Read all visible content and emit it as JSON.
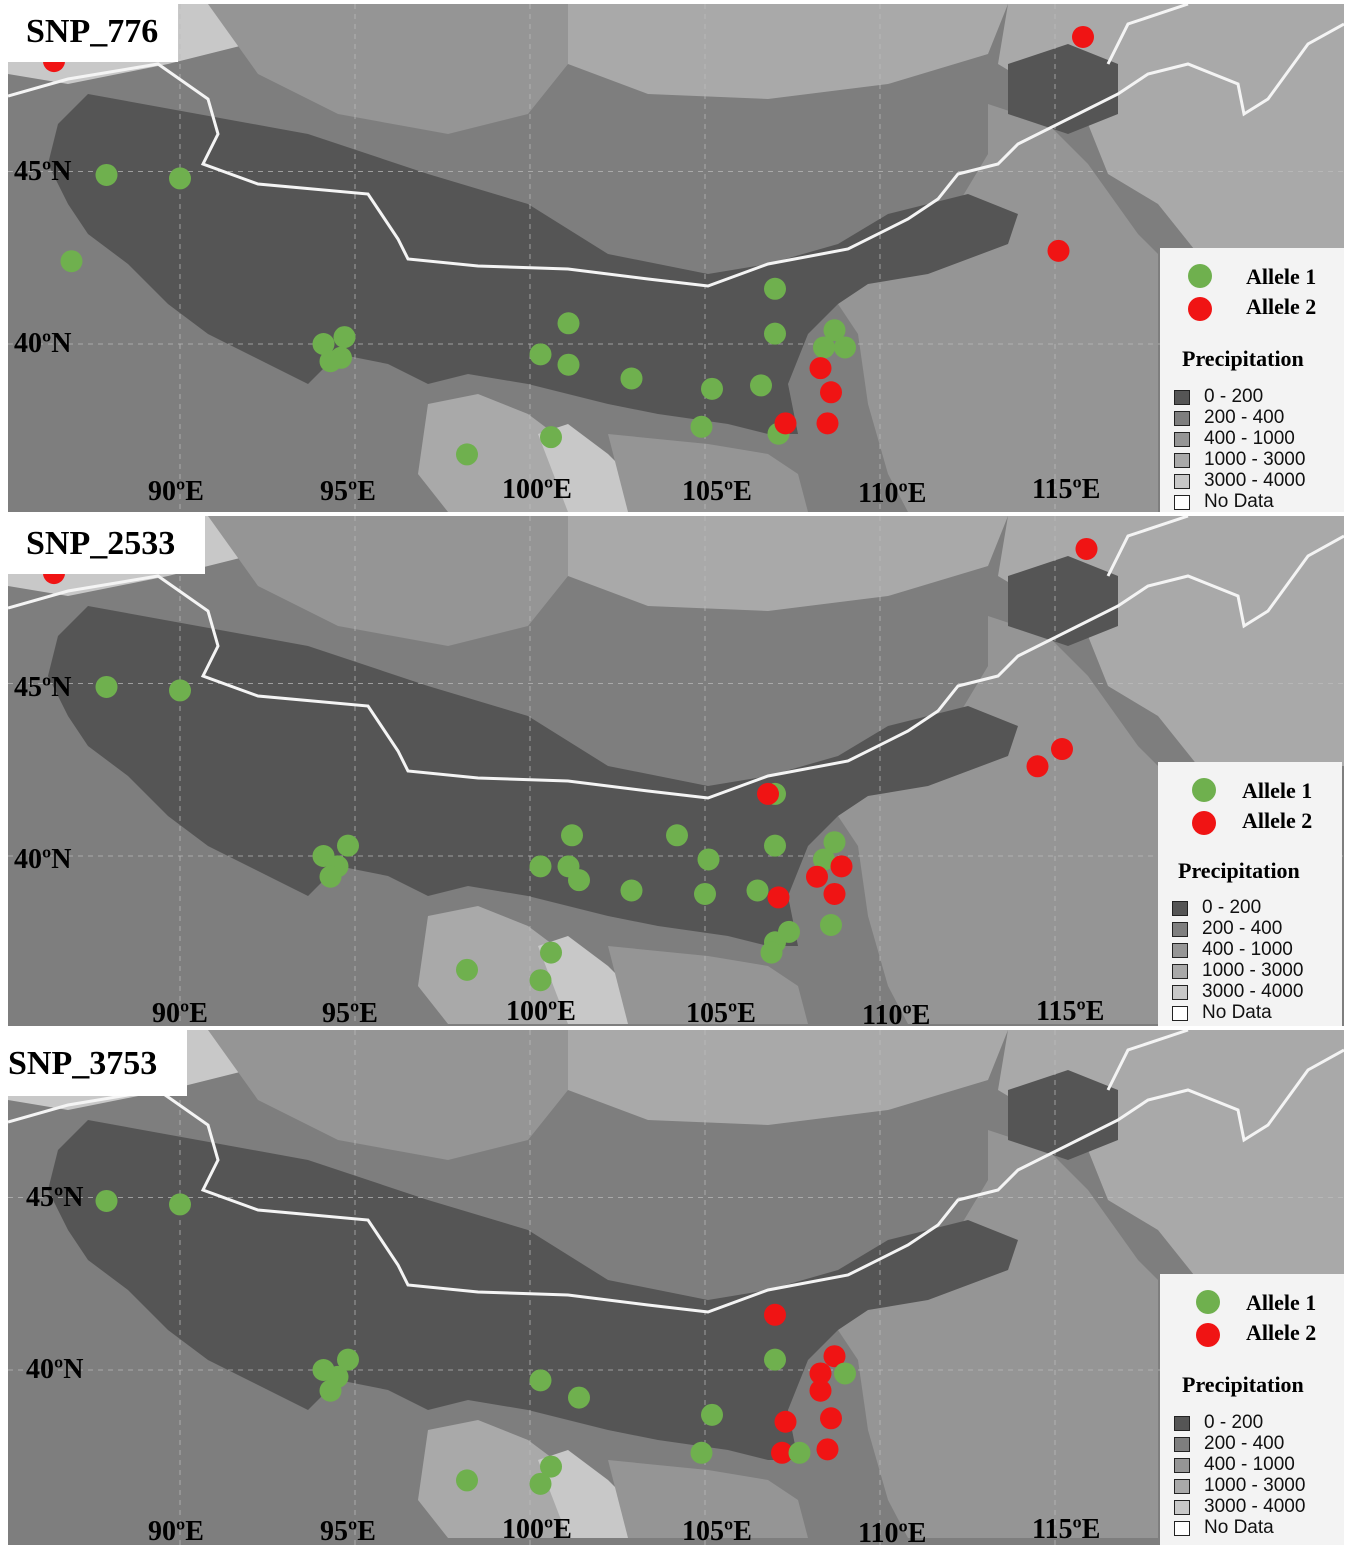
{
  "colors": {
    "allele_1": "#6fb04e",
    "allele_2": "#f01414",
    "precip_0_200": "#555555",
    "precip_200_400": "#7e7e7e",
    "precip_400_1000": "#959595",
    "precip_1000_3000": "#a9a9a9",
    "precip_3000_4000": "#c8c8c8",
    "no_data": "#ffffff"
  },
  "legend": {
    "allele_1": "Allele 1",
    "allele_2": "Allele 2",
    "precipitation_title": "Precipitation",
    "precipitation_classes": [
      "0 - 200",
      "200 - 400",
      "400 - 1000",
      "1000 - 3000",
      "3000 - 4000",
      "No Data"
    ]
  },
  "longitude_labels": [
    "90ºE",
    "95ºE",
    "100ºE",
    "105ºE",
    "110ºE",
    "115ºE"
  ],
  "latitude_labels": [
    "45ºN",
    "40ºN"
  ],
  "panels": [
    {
      "title": "SNP_776",
      "samples": [
        {
          "lon": 86.4,
          "lat": 48.2,
          "allele": 2
        },
        {
          "lon": 87.9,
          "lat": 44.9,
          "allele": 1
        },
        {
          "lon": 90.0,
          "lat": 44.8,
          "allele": 1
        },
        {
          "lon": 86.9,
          "lat": 42.4,
          "allele": 1
        },
        {
          "lon": 94.1,
          "lat": 40.0,
          "allele": 1
        },
        {
          "lon": 94.7,
          "lat": 40.2,
          "allele": 1
        },
        {
          "lon": 94.3,
          "lat": 39.5,
          "allele": 1
        },
        {
          "lon": 94.6,
          "lat": 39.6,
          "allele": 1
        },
        {
          "lon": 98.2,
          "lat": 36.8,
          "allele": 1
        },
        {
          "lon": 100.3,
          "lat": 39.7,
          "allele": 1
        },
        {
          "lon": 101.1,
          "lat": 40.6,
          "allele": 1
        },
        {
          "lon": 101.1,
          "lat": 39.4,
          "allele": 1
        },
        {
          "lon": 100.6,
          "lat": 37.3,
          "allele": 1
        },
        {
          "lon": 102.9,
          "lat": 39.0,
          "allele": 1
        },
        {
          "lon": 105.2,
          "lat": 38.7,
          "allele": 1
        },
        {
          "lon": 104.9,
          "lat": 37.6,
          "allele": 1
        },
        {
          "lon": 106.6,
          "lat": 38.8,
          "allele": 1
        },
        {
          "lon": 107.0,
          "lat": 41.6,
          "allele": 1
        },
        {
          "lon": 107.0,
          "lat": 40.3,
          "allele": 1
        },
        {
          "lon": 107.1,
          "lat": 37.4,
          "allele": 1
        },
        {
          "lon": 107.3,
          "lat": 37.7,
          "allele": 2
        },
        {
          "lon": 108.4,
          "lat": 39.9,
          "allele": 1
        },
        {
          "lon": 108.7,
          "lat": 40.4,
          "allele": 1
        },
        {
          "lon": 109.0,
          "lat": 39.9,
          "allele": 1
        },
        {
          "lon": 108.3,
          "lat": 39.3,
          "allele": 2
        },
        {
          "lon": 108.6,
          "lat": 38.6,
          "allele": 2
        },
        {
          "lon": 108.5,
          "lat": 37.7,
          "allele": 2
        },
        {
          "lon": 115.8,
          "lat": 48.9,
          "allele": 2
        },
        {
          "lon": 115.1,
          "lat": 42.7,
          "allele": 2
        }
      ]
    },
    {
      "title": "SNP_2533",
      "samples": [
        {
          "lon": 86.4,
          "lat": 48.2,
          "allele": 2
        },
        {
          "lon": 87.9,
          "lat": 44.9,
          "allele": 1
        },
        {
          "lon": 90.0,
          "lat": 44.8,
          "allele": 1
        },
        {
          "lon": 94.1,
          "lat": 40.0,
          "allele": 1
        },
        {
          "lon": 94.8,
          "lat": 40.3,
          "allele": 1
        },
        {
          "lon": 94.5,
          "lat": 39.7,
          "allele": 1
        },
        {
          "lon": 94.3,
          "lat": 39.4,
          "allele": 1
        },
        {
          "lon": 98.2,
          "lat": 36.7,
          "allele": 1
        },
        {
          "lon": 100.6,
          "lat": 37.2,
          "allele": 1
        },
        {
          "lon": 100.3,
          "lat": 36.4,
          "allele": 1
        },
        {
          "lon": 100.3,
          "lat": 39.7,
          "allele": 1
        },
        {
          "lon": 101.2,
          "lat": 40.6,
          "allele": 1
        },
        {
          "lon": 101.1,
          "lat": 39.7,
          "allele": 1
        },
        {
          "lon": 101.4,
          "lat": 39.3,
          "allele": 1
        },
        {
          "lon": 102.9,
          "lat": 39.0,
          "allele": 1
        },
        {
          "lon": 104.2,
          "lat": 40.6,
          "allele": 1
        },
        {
          "lon": 105.1,
          "lat": 39.9,
          "allele": 1
        },
        {
          "lon": 105.0,
          "lat": 38.9,
          "allele": 1
        },
        {
          "lon": 106.5,
          "lat": 39.0,
          "allele": 1
        },
        {
          "lon": 107.0,
          "lat": 41.8,
          "allele": 1
        },
        {
          "lon": 106.8,
          "lat": 41.8,
          "allele": 2
        },
        {
          "lon": 107.0,
          "lat": 40.3,
          "allele": 1
        },
        {
          "lon": 107.1,
          "lat": 38.8,
          "allele": 2
        },
        {
          "lon": 107.4,
          "lat": 37.8,
          "allele": 1
        },
        {
          "lon": 107.0,
          "lat": 37.5,
          "allele": 1
        },
        {
          "lon": 106.9,
          "lat": 37.2,
          "allele": 1
        },
        {
          "lon": 108.4,
          "lat": 39.9,
          "allele": 1
        },
        {
          "lon": 108.7,
          "lat": 40.4,
          "allele": 1
        },
        {
          "lon": 108.2,
          "lat": 39.4,
          "allele": 2
        },
        {
          "lon": 108.9,
          "lat": 39.7,
          "allele": 2
        },
        {
          "lon": 108.7,
          "lat": 38.9,
          "allele": 2
        },
        {
          "lon": 108.6,
          "lat": 38.0,
          "allele": 1
        },
        {
          "lon": 115.9,
          "lat": 48.9,
          "allele": 2
        },
        {
          "lon": 114.5,
          "lat": 42.6,
          "allele": 2
        },
        {
          "lon": 115.2,
          "lat": 43.1,
          "allele": 2
        }
      ]
    },
    {
      "title": "SNP_3753",
      "samples": [
        {
          "lon": 87.9,
          "lat": 44.9,
          "allele": 1
        },
        {
          "lon": 90.0,
          "lat": 44.8,
          "allele": 1
        },
        {
          "lon": 94.1,
          "lat": 40.0,
          "allele": 1
        },
        {
          "lon": 94.8,
          "lat": 40.3,
          "allele": 1
        },
        {
          "lon": 94.5,
          "lat": 39.8,
          "allele": 1
        },
        {
          "lon": 94.3,
          "lat": 39.4,
          "allele": 1
        },
        {
          "lon": 98.2,
          "lat": 36.8,
          "allele": 1
        },
        {
          "lon": 100.6,
          "lat": 37.2,
          "allele": 1
        },
        {
          "lon": 100.3,
          "lat": 36.7,
          "allele": 1
        },
        {
          "lon": 100.3,
          "lat": 39.7,
          "allele": 1
        },
        {
          "lon": 101.4,
          "lat": 39.2,
          "allele": 1
        },
        {
          "lon": 105.2,
          "lat": 38.7,
          "allele": 1
        },
        {
          "lon": 104.9,
          "lat": 37.6,
          "allele": 1
        },
        {
          "lon": 107.0,
          "lat": 41.6,
          "allele": 2
        },
        {
          "lon": 107.0,
          "lat": 40.3,
          "allele": 1
        },
        {
          "lon": 107.3,
          "lat": 38.5,
          "allele": 2
        },
        {
          "lon": 107.2,
          "lat": 37.6,
          "allele": 2
        },
        {
          "lon": 107.7,
          "lat": 37.6,
          "allele": 1
        },
        {
          "lon": 108.3,
          "lat": 39.9,
          "allele": 2
        },
        {
          "lon": 108.7,
          "lat": 40.4,
          "allele": 2
        },
        {
          "lon": 108.3,
          "lat": 39.4,
          "allele": 2
        },
        {
          "lon": 109.0,
          "lat": 39.9,
          "allele": 1
        },
        {
          "lon": 108.6,
          "lat": 38.6,
          "allele": 2
        },
        {
          "lon": 108.5,
          "lat": 37.7,
          "allele": 2
        }
      ]
    }
  ]
}
